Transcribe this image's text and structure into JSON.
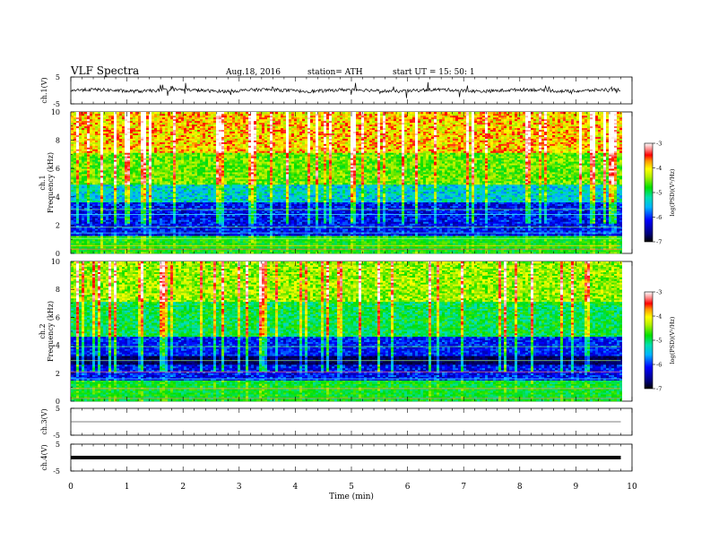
{
  "header": {
    "title": "VLF  Spectra",
    "date": "Aug.18, 2016",
    "station": "station= ATH",
    "start": "start  UT  =   15: 50: 1"
  },
  "chart_data": [
    {
      "type": "line",
      "panel": "ch1-waveform",
      "ylabel": "ch.1(V)",
      "ylim": [
        -5,
        5
      ],
      "yticks": [
        "5",
        "-5"
      ],
      "baseline": 0,
      "data_end_min": 9.8,
      "color": "#000000"
    },
    {
      "type": "heatmap",
      "panel": "ch1-spectrogram",
      "ylabel_top": "ch.1",
      "ylabel": "Frequency  (kHz)",
      "ylim": [
        0,
        10
      ],
      "yticks": [
        "0",
        "2",
        "4",
        "6",
        "8",
        "10"
      ],
      "data_end_min": 9.8,
      "colorbar": {
        "label": "log(PSD)(V²/Hz)",
        "ticks": [
          "-3",
          "-4",
          "-5",
          "-6",
          "-7"
        ],
        "range": [
          -7,
          -3
        ]
      }
    },
    {
      "type": "heatmap",
      "panel": "ch2-spectrogram",
      "ylabel_top": "ch.2",
      "ylabel": "Frequency  (kHz)",
      "ylim": [
        0,
        10
      ],
      "yticks": [
        "0",
        "2",
        "4",
        "6",
        "8",
        "10"
      ],
      "data_end_min": 9.8,
      "colorbar": {
        "label": "log(PSD)(V²/Hz)",
        "ticks": [
          "-3",
          "-4",
          "-5",
          "-6",
          "-7"
        ],
        "range": [
          -7,
          -3
        ]
      }
    },
    {
      "type": "line",
      "panel": "ch3-waveform",
      "ylabel": "ch.3(V)",
      "ylim": [
        -5,
        5
      ],
      "yticks": [
        "5",
        "-5"
      ],
      "baseline": 0,
      "data_end_min": 9.8,
      "color": "#555555"
    },
    {
      "type": "line",
      "panel": "ch4-waveform",
      "ylabel": "ch.4(V)",
      "ylim": [
        -5,
        5
      ],
      "yticks": [
        "5",
        "-5"
      ],
      "baseline": 0,
      "data_end_min": 9.8,
      "color": "#000000"
    }
  ],
  "x_axis": {
    "label": "Time  (min)",
    "range": [
      0,
      10
    ],
    "ticks": [
      "0",
      "1",
      "2",
      "3",
      "4",
      "5",
      "6",
      "7",
      "8",
      "9",
      "10"
    ]
  }
}
